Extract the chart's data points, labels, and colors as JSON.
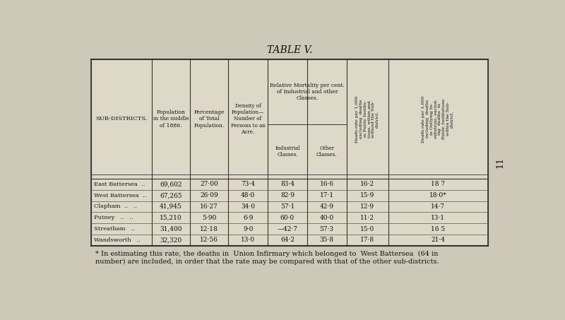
{
  "title": "TABLE V.",
  "bg_color": "#cec8b8",
  "table_bg": "#ddd8c8",
  "rows": [
    [
      "East Battersea  ..",
      "69,602",
      "27·00",
      "73·4",
      "83·4",
      "16·6",
      "16·2",
      "18 7"
    ],
    [
      "West Battersea  ..",
      "67,265",
      "26·09",
      "48·0",
      "82·9",
      "17·1",
      "15·9",
      "18·0*"
    ],
    [
      "Clapham  ..   ..",
      "41,945",
      "16·27",
      "34·0",
      "57·1",
      "42·9",
      "12·9",
      "14·7"
    ],
    [
      "Putney   ..   ..",
      "15,210",
      "5·90",
      "6·9",
      "60·0",
      "40·0",
      "11·2",
      "13·1"
    ],
    [
      "Streatham   ..",
      "31,400",
      "12·18",
      "9·0",
      "—42·7",
      "57·3",
      "15·0",
      "16 5"
    ],
    [
      "Wandsworth   ..",
      "32,320",
      "12·56",
      "13·0",
      "64·2",
      "35·8",
      "17·8",
      "21·4"
    ]
  ],
  "footnote_line1": "* In estimating this rate, the deaths in  Union Infirmary which belonged to  West Battersea  (64 in",
  "footnote_line2": "number) are included, in order that the rate may be compared with that of the other sub-districts.",
  "page_number": "11"
}
